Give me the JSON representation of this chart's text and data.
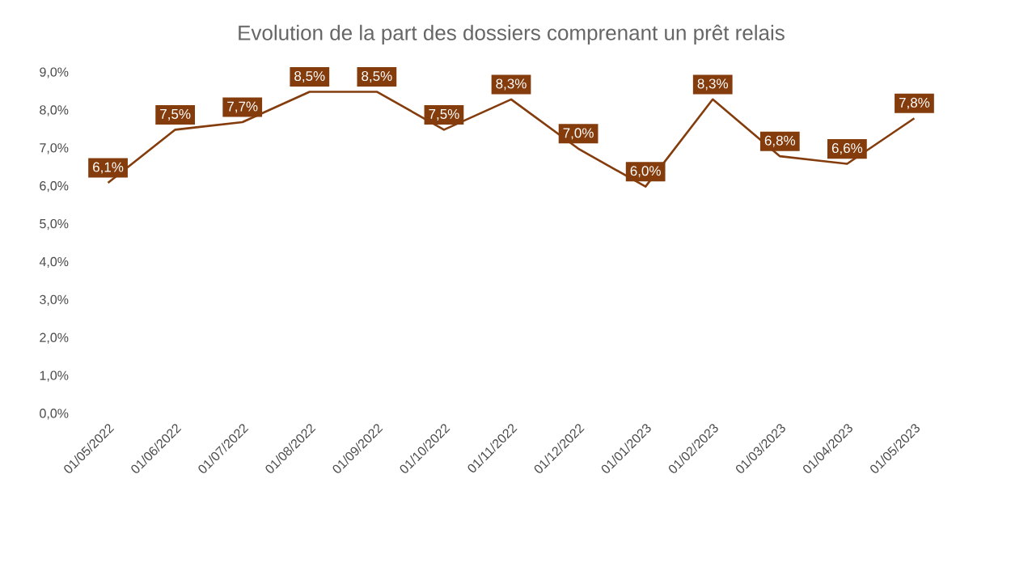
{
  "chart_data": {
    "type": "line",
    "title": "Evolution de la part des dossiers comprenant un prêt relais",
    "categories": [
      "01/05/2022",
      "01/06/2022",
      "01/07/2022",
      "01/08/2022",
      "01/09/2022",
      "01/10/2022",
      "01/11/2022",
      "01/12/2022",
      "01/01/2023",
      "01/02/2023",
      "01/03/2023",
      "01/04/2023",
      "01/05/2023"
    ],
    "series": [
      {
        "color": "#843c0c",
        "values": [
          6.1,
          7.5,
          7.7,
          8.5,
          8.5,
          7.5,
          8.3,
          7.0,
          6.0,
          8.3,
          6.8,
          6.6,
          7.8
        ],
        "value_labels": [
          "6,1%",
          "7,5%",
          "7,7%",
          "8,5%",
          "8,5%",
          "7,5%",
          "8,3%",
          "7,0%",
          "6,0%",
          "8,3%",
          "6,8%",
          "6,6%",
          "7,8%"
        ]
      }
    ],
    "ylim": [
      0,
      9
    ],
    "yticks": [
      {
        "value": 0,
        "label": "0,0%"
      },
      {
        "value": 1,
        "label": "1,0%"
      },
      {
        "value": 2,
        "label": "2,0%"
      },
      {
        "value": 3,
        "label": "3,0%"
      },
      {
        "value": 4,
        "label": "4,0%"
      },
      {
        "value": 5,
        "label": "5,0%"
      },
      {
        "value": 6,
        "label": "6,0%"
      },
      {
        "value": 7,
        "label": "7,0%"
      },
      {
        "value": 8,
        "label": "8,0%"
      },
      {
        "value": 9,
        "label": "9,0%"
      }
    ],
    "marker": "none"
  }
}
